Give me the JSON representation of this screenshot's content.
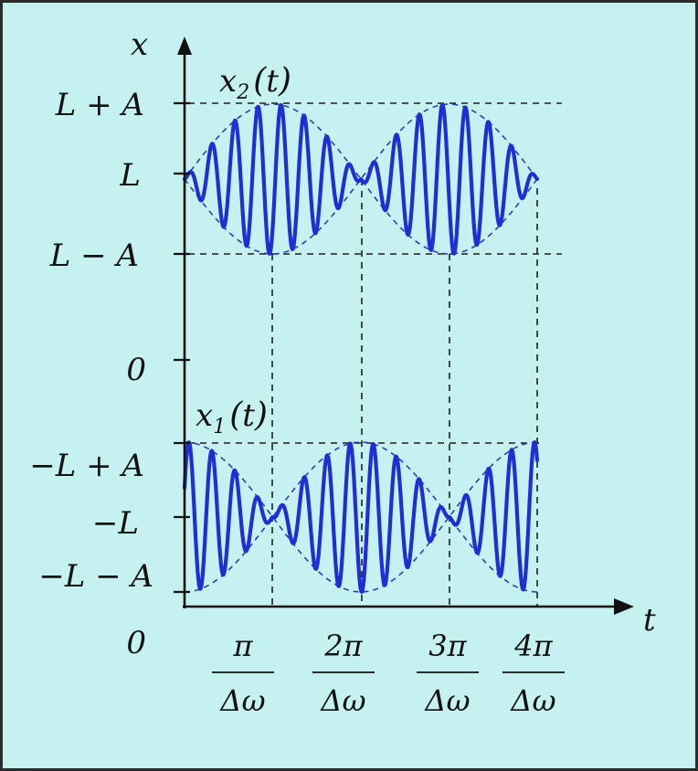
{
  "diagram": {
    "axes": {
      "x_name": "x",
      "t_name": "t"
    },
    "y_labels": {
      "l_plus_a": "L + A",
      "l": "L",
      "l_minus_a": "L − A",
      "zero": "0",
      "neg_l_plus_a": "−L + A",
      "neg_l": "−L",
      "neg_l_minus_a": "−L − A",
      "origin": "0"
    },
    "signals": {
      "x2": {
        "var": "x",
        "sub": "2",
        "open": "(",
        "arg": "t",
        "close": ")"
      },
      "x1": {
        "var": "x",
        "sub": "1",
        "open": "(",
        "arg": "t",
        "close": ")"
      }
    },
    "t_ticks": [
      {
        "num": "π",
        "den": "Δω"
      },
      {
        "num": "2π",
        "den": "Δω"
      },
      {
        "num": "3π",
        "den": "Δω"
      },
      {
        "num": "4π",
        "den": "Δω"
      }
    ],
    "colors": {
      "background": "#c6f1f1",
      "signal": "#1f2fd6",
      "envelope": "#2c3fb0",
      "axes": "#111111"
    }
  }
}
